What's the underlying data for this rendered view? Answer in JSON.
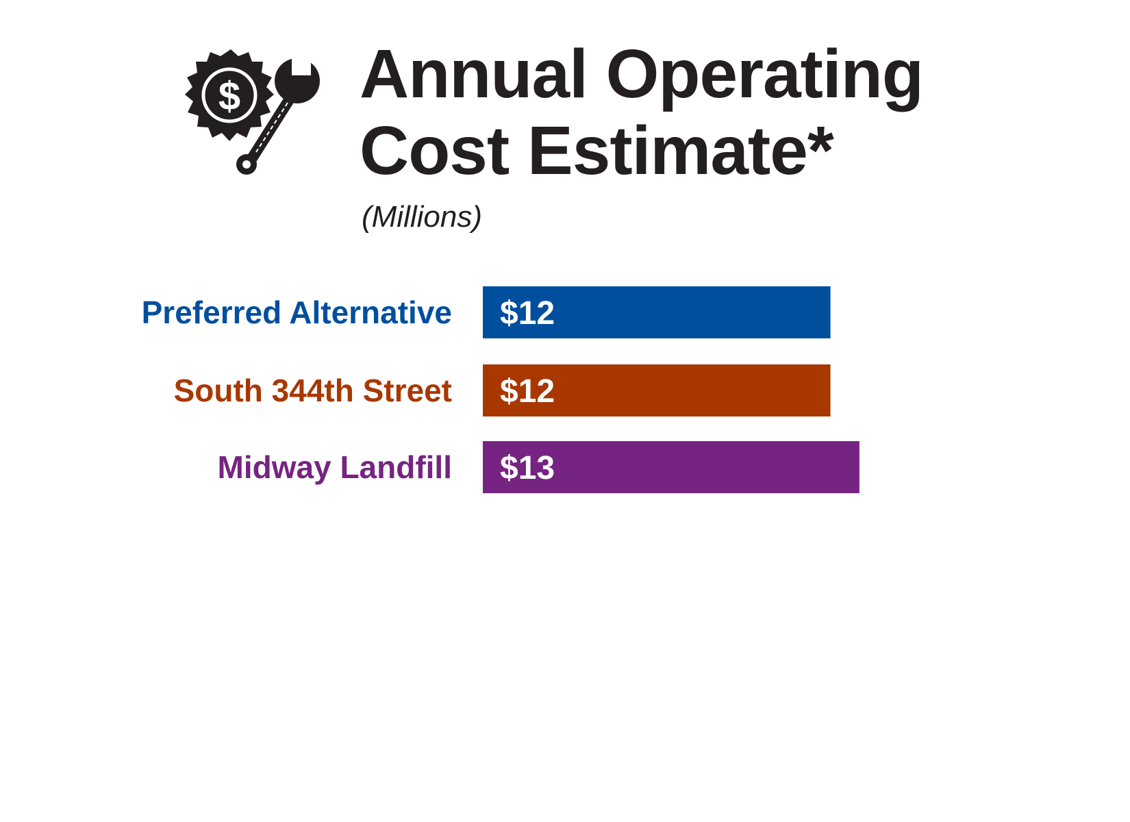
{
  "chart_data": {
    "type": "bar",
    "orientation": "horizontal",
    "title": [
      "Annual Operating",
      "Cost Estimate*"
    ],
    "subtitle": "(Millions)",
    "categories": [
      "Preferred Alternative",
      "South 344th Street",
      "Midway Landfill"
    ],
    "values": [
      12,
      12,
      13
    ],
    "value_labels": [
      "$12",
      "$12",
      "$13"
    ],
    "colors": [
      "#004f9e",
      "#a83800",
      "#762482"
    ],
    "xlim": [
      0,
      13
    ],
    "grid": false,
    "legend": "none"
  },
  "icons": {
    "logo": "gear-dollar-wrench-icon"
  }
}
